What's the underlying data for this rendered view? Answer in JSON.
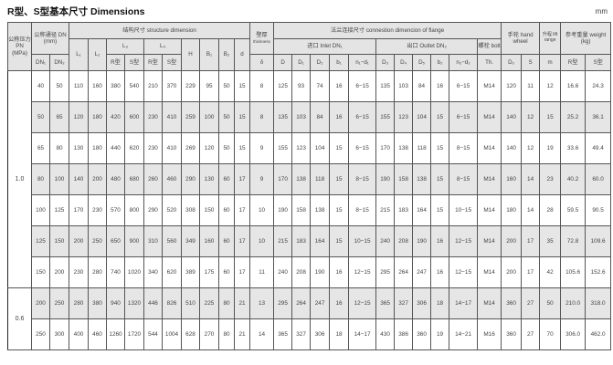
{
  "title": "R型、S型基本尺寸 Dimensions",
  "unit": "mm",
  "header": {
    "pn": "公称压力 PN (MPa)",
    "dn": "公称通径 DN (mm)",
    "structure": "结构尺寸 structure dimension",
    "thickness_cn": "壁厚",
    "thickness_en": "thickness",
    "flange": "法兰连接尺寸 connestion dimencion of flange",
    "inlet": "进口 Inlet DN₁",
    "outlet": "出口 Outlet DN₂",
    "bolt": "螺栓 bolt",
    "handwheel": "手轮 hand wheel",
    "lift": "升程 lift range",
    "weight": "参考重量 weight (kg)",
    "L1": "L₁",
    "L2": "L₂",
    "L3": "L₃",
    "L4": "L₄",
    "H": "H",
    "B1": "B₁",
    "B2": "B₂",
    "d": "d",
    "cols": [
      "DN₁",
      "DN₂",
      "R型",
      "S型",
      "R型",
      "S型",
      "δ",
      "D",
      "D₁",
      "D₂",
      "b₁",
      "n₁−d₁",
      "D₃",
      "D₄",
      "D₅",
      "b₂",
      "n₂−d₂",
      "Th.",
      "D₀",
      "S",
      "m",
      "R型",
      "S型"
    ]
  },
  "groups": [
    {
      "pn": "1.0",
      "rows": [
        [
          "40",
          "50",
          "110",
          "160",
          "380",
          "540",
          "210",
          "370",
          "229",
          "95",
          "50",
          "15",
          "8",
          "125",
          "93",
          "74",
          "16",
          "6−15",
          "135",
          "103",
          "84",
          "16",
          "6−15",
          "M14",
          "120",
          "11",
          "12",
          "16.6",
          "24.3"
        ],
        [
          "50",
          "65",
          "120",
          "180",
          "420",
          "600",
          "230",
          "410",
          "259",
          "100",
          "50",
          "15",
          "8",
          "135",
          "103",
          "84",
          "16",
          "6−15",
          "155",
          "123",
          "104",
          "15",
          "6−15",
          "M14",
          "140",
          "12",
          "15",
          "25.2",
          "36.1"
        ],
        [
          "65",
          "80",
          "130",
          "180",
          "440",
          "620",
          "230",
          "410",
          "269",
          "120",
          "50",
          "15",
          "9",
          "155",
          "123",
          "104",
          "15",
          "6−15",
          "170",
          "138",
          "118",
          "15",
          "8−15",
          "M14",
          "140",
          "12",
          "19",
          "33.6",
          "49.4"
        ],
        [
          "80",
          "100",
          "140",
          "200",
          "480",
          "680",
          "260",
          "460",
          "290",
          "130",
          "60",
          "17",
          "9",
          "170",
          "138",
          "118",
          "15",
          "8−15",
          "190",
          "158",
          "138",
          "15",
          "8−15",
          "M14",
          "160",
          "14",
          "23",
          "40.2",
          "60.0"
        ],
        [
          "100",
          "125",
          "170",
          "230",
          "570",
          "800",
          "290",
          "520",
          "308",
          "150",
          "60",
          "17",
          "10",
          "190",
          "158",
          "138",
          "15",
          "8−15",
          "215",
          "183",
          "164",
          "15",
          "10−15",
          "M14",
          "180",
          "14",
          "28",
          "59.5",
          "90.5"
        ],
        [
          "125",
          "150",
          "200",
          "250",
          "650",
          "900",
          "310",
          "560",
          "349",
          "160",
          "60",
          "17",
          "10",
          "215",
          "183",
          "164",
          "15",
          "10−15",
          "240",
          "208",
          "190",
          "16",
          "12−15",
          "M14",
          "200",
          "17",
          "35",
          "72.8",
          "109.6"
        ],
        [
          "150",
          "200",
          "230",
          "280",
          "740",
          "1020",
          "340",
          "620",
          "389",
          "175",
          "60",
          "17",
          "11",
          "240",
          "208",
          "190",
          "16",
          "12−15",
          "295",
          "264",
          "247",
          "16",
          "12−15",
          "M14",
          "200",
          "17",
          "42",
          "105.6",
          "152.6"
        ]
      ]
    },
    {
      "pn": "0.6",
      "rows": [
        [
          "200",
          "250",
          "280",
          "380",
          "940",
          "1320",
          "446",
          "826",
          "510",
          "225",
          "80",
          "21",
          "13",
          "295",
          "264",
          "247",
          "16",
          "12−15",
          "365",
          "327",
          "306",
          "18",
          "14−17",
          "M14",
          "360",
          "27",
          "50",
          "210.0",
          "318.0"
        ],
        [
          "250",
          "300",
          "400",
          "460",
          "1260",
          "1720",
          "544",
          "1004",
          "628",
          "270",
          "80",
          "21",
          "14",
          "365",
          "327",
          "306",
          "18",
          "14−17",
          "430",
          "386",
          "360",
          "19",
          "14−21",
          "M16",
          "360",
          "27",
          "70",
          "306.0",
          "462.0"
        ]
      ]
    }
  ]
}
